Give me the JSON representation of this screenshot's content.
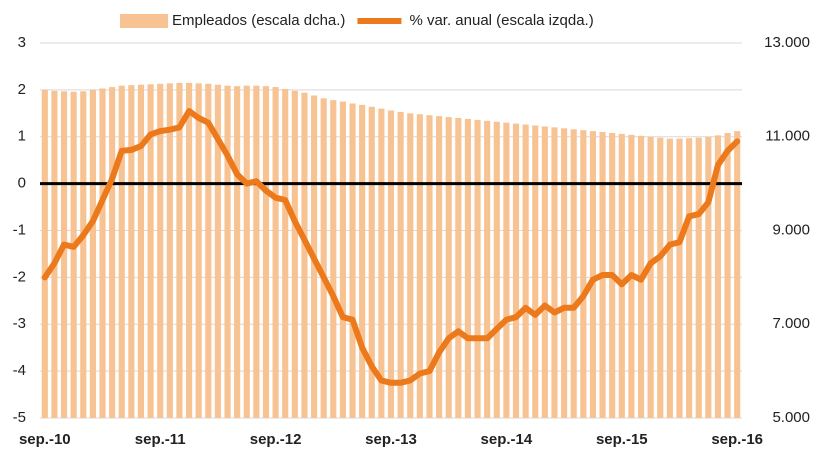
{
  "chart_data": {
    "type": "bar-line",
    "categories": [
      "sep.-10",
      null,
      null,
      null,
      null,
      null,
      null,
      null,
      null,
      null,
      null,
      null,
      "sep.-11",
      null,
      null,
      null,
      null,
      null,
      null,
      null,
      null,
      null,
      null,
      null,
      "sep.-12",
      null,
      null,
      null,
      null,
      null,
      null,
      null,
      null,
      null,
      null,
      null,
      "sep.-13",
      null,
      null,
      null,
      null,
      null,
      null,
      null,
      null,
      null,
      null,
      null,
      "sep.-14",
      null,
      null,
      null,
      null,
      null,
      null,
      null,
      null,
      null,
      null,
      null,
      "sep.-15",
      null,
      null,
      null,
      null,
      null,
      null,
      null,
      null,
      null,
      null,
      null,
      "sep.-16"
    ],
    "series": [
      {
        "name": "Empleados (escala dcha.)",
        "type": "bar",
        "axis": "y2",
        "color": "#f8c393",
        "values": [
          12000,
          11980,
          11970,
          11960,
          11970,
          12000,
          12030,
          12060,
          12090,
          12100,
          12110,
          12120,
          12130,
          12140,
          12150,
          12150,
          12140,
          12130,
          12110,
          12090,
          12080,
          12090,
          12090,
          12080,
          12060,
          12020,
          11980,
          11940,
          11880,
          11820,
          11780,
          11750,
          11710,
          11680,
          11640,
          11600,
          11560,
          11530,
          11500,
          11480,
          11460,
          11440,
          11420,
          11400,
          11380,
          11360,
          11340,
          11320,
          11300,
          11280,
          11260,
          11240,
          11220,
          11200,
          11180,
          11160,
          11140,
          11120,
          11100,
          11080,
          11060,
          11040,
          11020,
          11000,
          10980,
          10960,
          10960,
          10970,
          10980,
          11000,
          11030,
          11080,
          11120
        ]
      },
      {
        "name": "% var. anual (escala izqda.)",
        "type": "line",
        "axis": "y",
        "color": "#ec7a1c",
        "values": [
          -2.0,
          -1.7,
          -1.3,
          -1.35,
          -1.1,
          -0.8,
          -0.35,
          0.1,
          0.7,
          0.72,
          0.8,
          1.05,
          1.12,
          1.15,
          1.2,
          1.55,
          1.4,
          1.3,
          0.95,
          0.6,
          0.2,
          0.0,
          0.05,
          -0.15,
          -0.3,
          -0.35,
          -0.8,
          -1.2,
          -1.6,
          -2.0,
          -2.4,
          -2.85,
          -2.9,
          -3.5,
          -3.9,
          -4.2,
          -4.25,
          -4.25,
          -4.2,
          -4.05,
          -4.0,
          -3.6,
          -3.3,
          -3.15,
          -3.3,
          -3.3,
          -3.3,
          -3.1,
          -2.9,
          -2.85,
          -2.65,
          -2.8,
          -2.6,
          -2.75,
          -2.65,
          -2.65,
          -2.4,
          -2.05,
          -1.95,
          -1.95,
          -2.15,
          -1.95,
          -2.05,
          -1.7,
          -1.55,
          -1.3,
          -1.25,
          -0.7,
          -0.65,
          -0.4,
          0.4,
          0.7,
          0.9
        ]
      }
    ],
    "ylim": [
      -5,
      3
    ],
    "yticks": [
      -5,
      -4,
      -3,
      -2,
      -1,
      0,
      1,
      2,
      3
    ],
    "y2lim": [
      5000,
      13000
    ],
    "y2ticks": [
      {
        "value": 5000,
        "label": "5.000"
      },
      {
        "value": 7000,
        "label": "7.000"
      },
      {
        "value": 9000,
        "label": "9.000"
      },
      {
        "value": 11000,
        "label": "11.000"
      },
      {
        "value": 13000,
        "label": "13.000"
      }
    ],
    "grid": true,
    "legend": "top"
  }
}
